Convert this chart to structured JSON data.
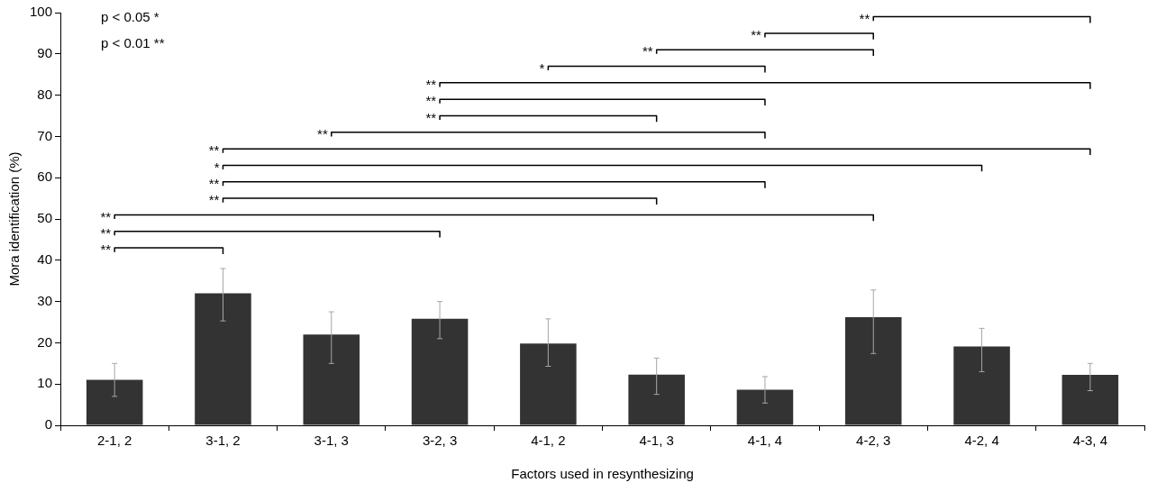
{
  "chart_data": {
    "type": "bar",
    "xlabel": "Factors used in resynthesizing",
    "ylabel": "Mora identification (%)",
    "categories": [
      "2-1, 2",
      "3-1, 2",
      "3-1, 3",
      "3-2, 3",
      "4-1, 2",
      "4-1, 3",
      "4-1, 4",
      "4-2, 3",
      "4-2, 4",
      "4-3, 4"
    ],
    "series": [
      {
        "color": "#333333",
        "values": [
          11,
          32,
          22,
          25.8,
          19.8,
          12.3,
          8.6,
          26.2,
          19.1,
          12.2
        ],
        "errors": [
          [
            7,
            15
          ],
          [
            25.3,
            38
          ],
          [
            15,
            27.5
          ],
          [
            21,
            30
          ],
          [
            14.3,
            25.8
          ],
          [
            7.5,
            16.3
          ],
          [
            5.4,
            11.8
          ],
          [
            17.4,
            32.8
          ],
          [
            13,
            23.5
          ],
          [
            8.4,
            15
          ]
        ]
      },
      {
        "type": "line",
        "color": "#000000",
        "x": [
          "2-1, 2",
          "2-1, 2",
          "3-1, 2",
          "3-1, 2"
        ],
        "values": [
          42,
          43,
          43,
          41.5
        ]
      },
      {
        "type": "line",
        "color": "#000000",
        "x": [
          "2-1, 2",
          "2-1, 2",
          "3-2, 3",
          "3-2, 3"
        ],
        "values": [
          46,
          47,
          47,
          45.5
        ]
      },
      {
        "type": "line",
        "color": "#000000",
        "x": [
          "2-1, 2",
          "2-1, 2",
          "4-2, 3",
          "4-2, 3"
        ],
        "values": [
          50,
          51,
          51,
          49.5
        ]
      },
      {
        "type": "line",
        "color": "#000000",
        "x": [
          "3-1, 2",
          "3-1, 2",
          "4-1, 3",
          "4-1, 3"
        ],
        "values": [
          54,
          55,
          55,
          53.5
        ]
      },
      {
        "type": "line",
        "color": "#000000",
        "x": [
          "3-1, 2",
          "3-1, 2",
          "4-1, 4",
          "4-1, 4"
        ],
        "values": [
          58,
          59,
          59,
          57.5
        ]
      },
      {
        "type": "line",
        "color": "#000000",
        "x": [
          "3-1, 2",
          "3-1, 2",
          "4-2, 4",
          "4-2, 4"
        ],
        "values": [
          62,
          63,
          63,
          61.5
        ]
      },
      {
        "type": "line",
        "color": "#000000",
        "x": [
          "3-1, 2",
          "3-1, 2",
          "4-3, 4",
          "4-3, 4"
        ],
        "values": [
          66,
          67,
          67,
          65.5
        ]
      },
      {
        "type": "line",
        "color": "#000000",
        "x": [
          "3-1, 3",
          "3-1, 3",
          "4-1, 4",
          "4-1, 4"
        ],
        "values": [
          70,
          71,
          71,
          69.5
        ]
      },
      {
        "type": "line",
        "color": "#000000",
        "x": [
          "3-2, 3",
          "3-2, 3",
          "4-1, 3",
          "4-1, 3"
        ],
        "values": [
          74,
          75,
          75,
          73.5
        ]
      },
      {
        "type": "line",
        "color": "#000000",
        "x": [
          "3-2, 3",
          "3-2, 3",
          "4-1, 4",
          "4-1, 4"
        ],
        "values": [
          78,
          79,
          79,
          77.5
        ]
      },
      {
        "type": "line",
        "color": "#000000",
        "x": [
          "3-2, 3",
          "3-2, 3",
          "4-3, 4",
          "4-3, 4"
        ],
        "values": [
          82,
          83,
          83,
          81.5
        ]
      },
      {
        "type": "line",
        "color": "#000000",
        "x": [
          "4-1, 2",
          "4-1, 2",
          "4-1, 4",
          "4-1, 4"
        ],
        "values": [
          86,
          87,
          87,
          85.5
        ]
      },
      {
        "type": "line",
        "color": "#000000",
        "x": [
          "4-1, 3",
          "4-1, 3",
          "4-2, 3",
          "4-2, 3"
        ],
        "values": [
          90,
          91,
          91,
          89.5
        ]
      },
      {
        "type": "line",
        "color": "#000000",
        "x": [
          "4-1, 4",
          "4-1, 4",
          "4-2, 3",
          "4-2, 3"
        ],
        "values": [
          94,
          95,
          95,
          93.5
        ]
      },
      {
        "type": "line",
        "color": "#000000",
        "x": [
          "4-2, 3",
          "4-2, 3",
          "4-3, 4",
          "4-3, 4"
        ],
        "values": [
          98,
          99,
          99,
          97.5
        ]
      }
    ],
    "ylim": [
      0,
      100
    ],
    "yticks": [
      0,
      10,
      20,
      30,
      40,
      50,
      60,
      70,
      80,
      90,
      100
    ],
    "grid": false,
    "legend": false,
    "annotations": [
      "p < 0.05 *",
      "p < 0.01 **",
      {
        "text": "**",
        "x": "2-1, 2",
        "y": 43
      },
      {
        "text": "**",
        "x": "2-1, 2",
        "y": 47
      },
      {
        "text": "**",
        "x": "2-1, 2",
        "y": 51
      },
      {
        "text": "**",
        "x": "3-1, 2",
        "y": 55
      },
      {
        "text": "**",
        "x": "3-1, 2",
        "y": 59
      },
      {
        "text": "*",
        "x": "3-1, 2",
        "y": 63
      },
      {
        "text": "**",
        "x": "3-1, 2",
        "y": 67
      },
      {
        "text": "**",
        "x": "3-1, 3",
        "y": 71
      },
      {
        "text": "**",
        "x": "3-2, 3",
        "y": 75
      },
      {
        "text": "**",
        "x": "3-2, 3",
        "y": 79
      },
      {
        "text": "**",
        "x": "3-2, 3",
        "y": 83
      },
      {
        "text": "*",
        "x": "4-1, 2",
        "y": 87
      },
      {
        "text": "**",
        "x": "4-1, 3",
        "y": 91
      },
      {
        "text": "**",
        "x": "4-1, 4",
        "y": 95
      },
      {
        "text": "**",
        "x": "4-2, 3",
        "y": 99
      }
    ]
  }
}
